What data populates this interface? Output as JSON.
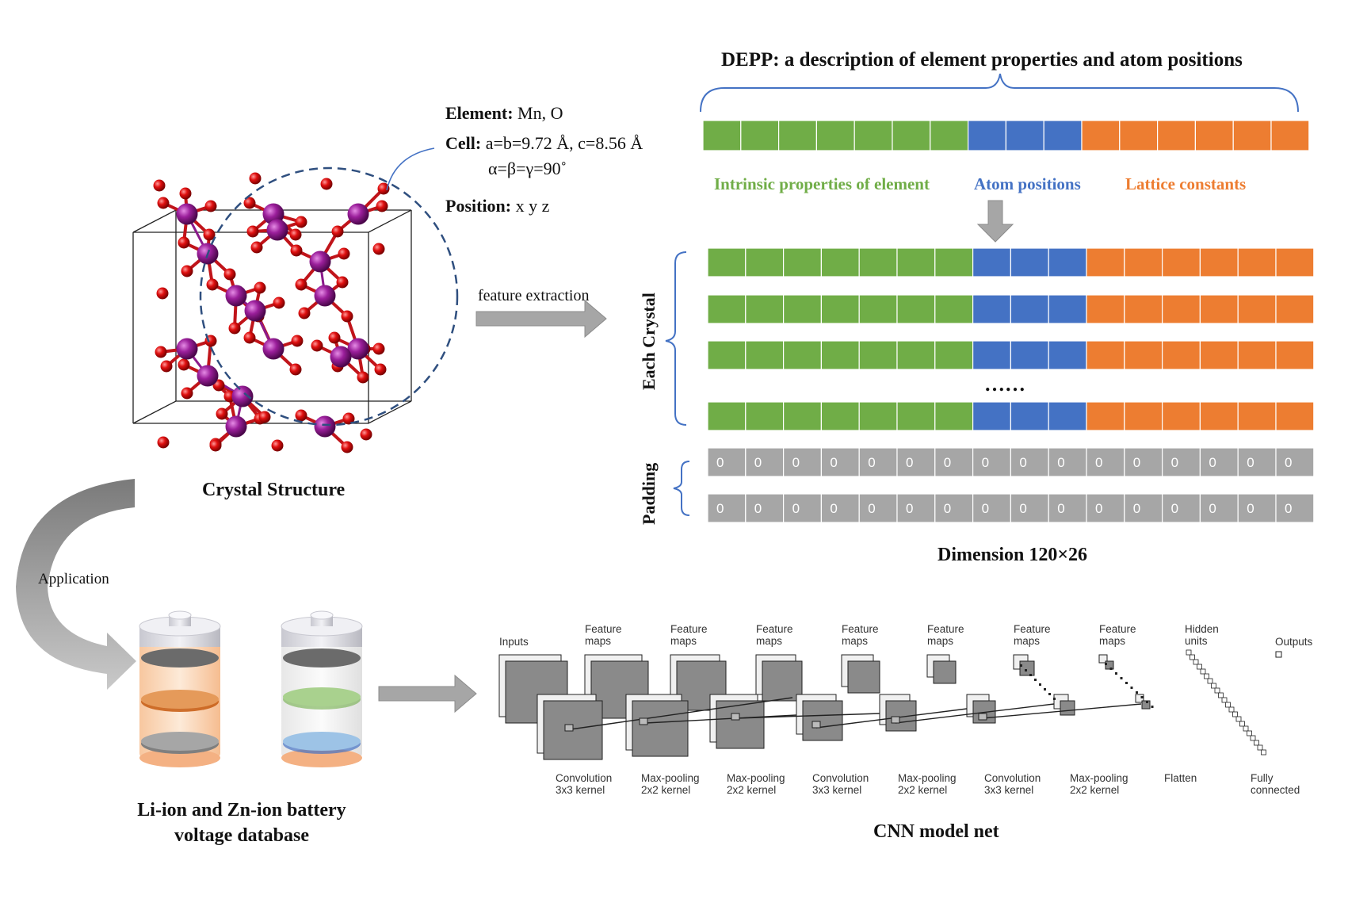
{
  "header": {
    "title": "DEPP: a description of element properties and atom positions"
  },
  "crystal_info": {
    "element_label": "Element:",
    "element_value": "Mn, O",
    "cell_label": "Cell:",
    "cell_value": "a=b=9.72 Å, c=8.56 Å",
    "cell_angles": "α=β=γ=90˚",
    "position_label": "Position:",
    "position_value": "x y z"
  },
  "legend": {
    "green": "Intrinsic properties of element",
    "blue": "Atom positions",
    "orange": "Lattice constants"
  },
  "labels": {
    "feature_extraction": "feature extraction",
    "each_crystal": "Each Crystal",
    "padding": "Padding",
    "ellipsis": "……",
    "dimension": "Dimension 120×26",
    "crystal_structure": "Crystal Structure",
    "application": "Application",
    "battery_caption_1": "Li-ion and Zn-ion battery",
    "battery_caption_2": "voltage database",
    "cnn_caption": "CNN model net"
  },
  "padding_value": "0",
  "cnn": {
    "top": [
      {
        "l1": "Inputs",
        "l2": ""
      },
      {
        "l1": "Feature",
        "l2": "maps"
      },
      {
        "l1": "Feature",
        "l2": "maps"
      },
      {
        "l1": "Feature",
        "l2": "maps"
      },
      {
        "l1": "Feature",
        "l2": "maps"
      },
      {
        "l1": "Feature",
        "l2": "maps"
      },
      {
        "l1": "Feature",
        "l2": "maps"
      },
      {
        "l1": "Feature",
        "l2": "maps"
      },
      {
        "l1": "Hidden",
        "l2": "units"
      },
      {
        "l1": "Outputs",
        "l2": ""
      }
    ],
    "bottom": [
      {
        "l1": "Convolution",
        "l2": "3x3 kernel"
      },
      {
        "l1": "Max-pooling",
        "l2": "2x2 kernel"
      },
      {
        "l1": "Max-pooling",
        "l2": "2x2 kernel"
      },
      {
        "l1": "Convolution",
        "l2": "3x3 kernel"
      },
      {
        "l1": "Max-pooling",
        "l2": "2x2 kernel"
      },
      {
        "l1": "Convolution",
        "l2": "3x3 kernel"
      },
      {
        "l1": "Max-pooling",
        "l2": "2x2 kernel"
      },
      {
        "l1": "Flatten",
        "l2": ""
      },
      {
        "l1": "Fully",
        "l2": "connected"
      }
    ]
  },
  "colors": {
    "green": "#70ad47",
    "blue": "#4472c4",
    "orange": "#ed7d31",
    "gray": "#a6a6a6",
    "mn_atom": "#8b1a8b",
    "o_atom": "#e01010",
    "legend_green": "#70ad47",
    "legend_blue": "#4472c4",
    "legend_orange": "#ed7d31"
  }
}
